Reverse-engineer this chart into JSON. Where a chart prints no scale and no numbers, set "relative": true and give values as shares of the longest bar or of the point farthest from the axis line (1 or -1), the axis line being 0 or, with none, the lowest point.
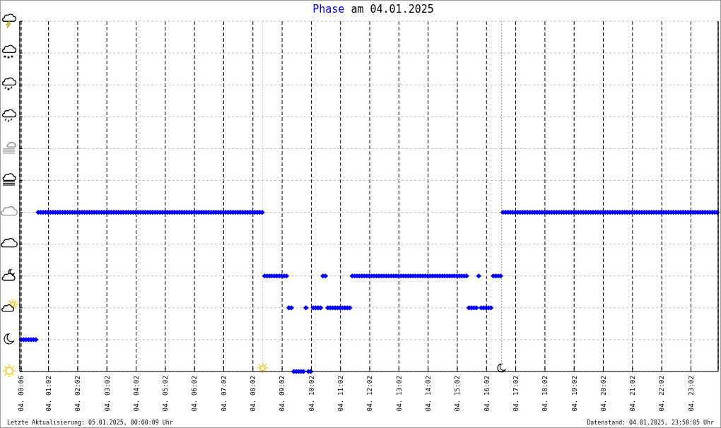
{
  "chart_data": {
    "type": "scatter",
    "title": "am 04.01.2025",
    "relative": true,
    "x": [
      "2025-01-04T00:06",
      "2025-01-04T00:11",
      "2025-01-04T00:16",
      "2025-01-04T00:21",
      "2025-01-04T00:26",
      "2025-01-04T00:31",
      "2025-01-04T00:36",
      "2025-01-04T00:41",
      "2025-01-04T00:46",
      "2025-01-04T00:51",
      "2025-01-04T00:56",
      "2025-01-04T01:01",
      "2025-01-04T01:06",
      "2025-01-04T01:11",
      "2025-01-04T01:16",
      "2025-01-04T01:21",
      "2025-01-04T01:26",
      "2025-01-04T01:31",
      "2025-01-04T01:36",
      "2025-01-04T01:41",
      "2025-01-04T01:46",
      "2025-01-04T01:51",
      "2025-01-04T01:56",
      "2025-01-04T02:01",
      "2025-01-04T02:06",
      "2025-01-04T02:11",
      "2025-01-04T02:16",
      "2025-01-04T02:21",
      "2025-01-04T02:26",
      "2025-01-04T02:31",
      "2025-01-04T02:36",
      "2025-01-04T02:41",
      "2025-01-04T02:46",
      "2025-01-04T02:51",
      "2025-01-04T02:56",
      "2025-01-04T03:01",
      "2025-01-04T03:06",
      "2025-01-04T03:11",
      "2025-01-04T03:16",
      "2025-01-04T03:21",
      "2025-01-04T03:26",
      "2025-01-04T03:31",
      "2025-01-04T03:36",
      "2025-01-04T03:41",
      "2025-01-04T03:46",
      "2025-01-04T03:51",
      "2025-01-04T03:56",
      "2025-01-04T04:01",
      "2025-01-04T04:06",
      "2025-01-04T04:11",
      "2025-01-04T04:16",
      "2025-01-04T04:21",
      "2025-01-04T04:26",
      "2025-01-04T04:31",
      "2025-01-04T04:36",
      "2025-01-04T04:41",
      "2025-01-04T04:46",
      "2025-01-04T04:51",
      "2025-01-04T04:56",
      "2025-01-04T05:01",
      "2025-01-04T05:06",
      "2025-01-04T05:11",
      "2025-01-04T05:16",
      "2025-01-04T05:21",
      "2025-01-04T05:26",
      "2025-01-04T05:31",
      "2025-01-04T05:36",
      "2025-01-04T05:41",
      "2025-01-04T05:46",
      "2025-01-04T05:51",
      "2025-01-04T05:56",
      "2025-01-04T06:01",
      "2025-01-04T06:06",
      "2025-01-04T06:11",
      "2025-01-04T06:16",
      "2025-01-04T06:21",
      "2025-01-04T06:26",
      "2025-01-04T06:31",
      "2025-01-04T06:36",
      "2025-01-04T06:41",
      "2025-01-04T06:46",
      "2025-01-04T06:51",
      "2025-01-04T06:56",
      "2025-01-04T07:01",
      "2025-01-04T07:06",
      "2025-01-04T07:11",
      "2025-01-04T07:16",
      "2025-01-04T07:21",
      "2025-01-04T07:26",
      "2025-01-04T07:31",
      "2025-01-04T07:36",
      "2025-01-04T07:41",
      "2025-01-04T07:46",
      "2025-01-04T07:51",
      "2025-01-04T07:56",
      "2025-01-04T08:01",
      "2025-01-04T08:06",
      "2025-01-04T08:11",
      "2025-01-04T08:16",
      "2025-01-04T08:21",
      "2025-01-04T08:26",
      "2025-01-04T08:31",
      "2025-01-04T08:36",
      "2025-01-04T08:41",
      "2025-01-04T08:46",
      "2025-01-04T08:51",
      "2025-01-04T08:56",
      "2025-01-04T09:01",
      "2025-01-04T09:06",
      "2025-01-04T09:11",
      "2025-01-04T09:16",
      "2025-01-04T09:21",
      "2025-01-04T09:26",
      "2025-01-04T09:31",
      "2025-01-04T09:36",
      "2025-01-04T09:41",
      "2025-01-04T09:46",
      "2025-01-04T09:51",
      "2025-01-04T09:56",
      "2025-01-04T10:01",
      "2025-01-04T10:06",
      "2025-01-04T10:11",
      "2025-01-04T10:16",
      "2025-01-04T10:21",
      "2025-01-04T10:26",
      "2025-01-04T10:31",
      "2025-01-04T10:36",
      "2025-01-04T10:41",
      "2025-01-04T10:46",
      "2025-01-04T10:51",
      "2025-01-04T10:56",
      "2025-01-04T11:01",
      "2025-01-04T11:06",
      "2025-01-04T11:11",
      "2025-01-04T11:16",
      "2025-01-04T11:21",
      "2025-01-04T11:26",
      "2025-01-04T11:31",
      "2025-01-04T11:36",
      "2025-01-04T11:41",
      "2025-01-04T11:46",
      "2025-01-04T11:51",
      "2025-01-04T11:56",
      "2025-01-04T12:01",
      "2025-01-04T12:06",
      "2025-01-04T12:11",
      "2025-01-04T12:16",
      "2025-01-04T12:21",
      "2025-01-04T12:26",
      "2025-01-04T12:31",
      "2025-01-04T12:36",
      "2025-01-04T12:41",
      "2025-01-04T12:46",
      "2025-01-04T12:51",
      "2025-01-04T12:56",
      "2025-01-04T13:01",
      "2025-01-04T13:06",
      "2025-01-04T13:11",
      "2025-01-04T13:16",
      "2025-01-04T13:21",
      "2025-01-04T13:26",
      "2025-01-04T13:31",
      "2025-01-04T13:36",
      "2025-01-04T13:41",
      "2025-01-04T13:46",
      "2025-01-04T13:51",
      "2025-01-04T13:56",
      "2025-01-04T14:01",
      "2025-01-04T14:06",
      "2025-01-04T14:11",
      "2025-01-04T14:16",
      "2025-01-04T14:21",
      "2025-01-04T14:26",
      "2025-01-04T14:31",
      "2025-01-04T14:36",
      "2025-01-04T14:41",
      "2025-01-04T14:46",
      "2025-01-04T14:51",
      "2025-01-04T14:56",
      "2025-01-04T15:01",
      "2025-01-04T15:06",
      "2025-01-04T15:11",
      "2025-01-04T15:16",
      "2025-01-04T15:21",
      "2025-01-04T15:26",
      "2025-01-04T15:31",
      "2025-01-04T15:36",
      "2025-01-04T15:41",
      "2025-01-04T15:46",
      "2025-01-04T15:51",
      "2025-01-04T15:56",
      "2025-01-04T16:01",
      "2025-01-04T16:06",
      "2025-01-04T16:11",
      "2025-01-04T16:16",
      "2025-01-04T16:21",
      "2025-01-04T16:26",
      "2025-01-04T16:31",
      "2025-01-04T16:36",
      "2025-01-04T16:41",
      "2025-01-04T16:46",
      "2025-01-04T16:51",
      "2025-01-04T16:56",
      "2025-01-04T17:01",
      "2025-01-04T17:06",
      "2025-01-04T17:11",
      "2025-01-04T17:16",
      "2025-01-04T17:21",
      "2025-01-04T17:26",
      "2025-01-04T17:31",
      "2025-01-04T17:36",
      "2025-01-04T17:41",
      "2025-01-04T17:46",
      "2025-01-04T17:51",
      "2025-01-04T17:56",
      "2025-01-04T18:01",
      "2025-01-04T18:06",
      "2025-01-04T18:11",
      "2025-01-04T18:16",
      "2025-01-04T18:21",
      "2025-01-04T18:26",
      "2025-01-04T18:31",
      "2025-01-04T18:36",
      "2025-01-04T18:41",
      "2025-01-04T18:46",
      "2025-01-04T18:51",
      "2025-01-04T18:56",
      "2025-01-04T19:01",
      "2025-01-04T19:06",
      "2025-01-04T19:11",
      "2025-01-04T19:16",
      "2025-01-04T19:21",
      "2025-01-04T19:26",
      "2025-01-04T19:31",
      "2025-01-04T19:36",
      "2025-01-04T19:41",
      "2025-01-04T19:46",
      "2025-01-04T19:51",
      "2025-01-04T19:56",
      "2025-01-04T20:01",
      "2025-01-04T20:06",
      "2025-01-04T20:11",
      "2025-01-04T20:16",
      "2025-01-04T20:21",
      "2025-01-04T20:26",
      "2025-01-04T20:31",
      "2025-01-04T20:36",
      "2025-01-04T20:41",
      "2025-01-04T20:46",
      "2025-01-04T20:51",
      "2025-01-04T20:56",
      "2025-01-04T21:01",
      "2025-01-04T21:06",
      "2025-01-04T21:11",
      "2025-01-04T21:16",
      "2025-01-04T21:21",
      "2025-01-04T21:26",
      "2025-01-04T21:31",
      "2025-01-04T21:36",
      "2025-01-04T21:41",
      "2025-01-04T21:46",
      "2025-01-04T21:51",
      "2025-01-04T21:56",
      "2025-01-04T22:01",
      "2025-01-04T22:06",
      "2025-01-04T22:11",
      "2025-01-04T22:16",
      "2025-01-04T22:21",
      "2025-01-04T22:26",
      "2025-01-04T22:31",
      "2025-01-04T22:36",
      "2025-01-04T22:41",
      "2025-01-04T22:46",
      "2025-01-04T22:51",
      "2025-01-04T22:56",
      "2025-01-04T23:01",
      "2025-01-04T23:06",
      "2025-01-04T23:11",
      "2025-01-04T23:16",
      "2025-01-04T23:21",
      "2025-01-04T23:26",
      "2025-01-04T23:31",
      "2025-01-04T23:36",
      "2025-01-04T23:41",
      "2025-01-04T23:46",
      "2025-01-04T23:51",
      "2025-01-04T23:56"
    ],
    "series": [
      {
        "name": "Phase",
        "color": "#0000ff",
        "values": [
          0.2,
          0.2,
          0.2,
          0.2,
          0.2,
          0.2,
          0.2,
          1,
          1,
          1,
          1,
          1,
          1,
          1,
          1,
          1,
          1,
          1,
          1,
          1,
          1,
          1,
          1,
          1,
          1,
          1,
          1,
          1,
          1,
          1,
          1,
          1,
          1,
          1,
          1,
          1,
          1,
          1,
          1,
          1,
          1,
          1,
          1,
          1,
          1,
          1,
          1,
          1,
          1,
          1,
          1,
          1,
          1,
          1,
          1,
          1,
          1,
          1,
          1,
          1,
          1,
          1,
          1,
          1,
          1,
          1,
          1,
          1,
          1,
          1,
          1,
          1,
          1,
          1,
          1,
          1,
          1,
          1,
          1,
          1,
          1,
          1,
          1,
          1,
          1,
          1,
          1,
          1,
          1,
          1,
          1,
          1,
          1,
          1,
          1,
          1,
          1,
          1,
          1,
          1,
          0.6,
          0.6,
          0.6,
          0.6,
          0.6,
          0.6,
          0.6,
          0.6,
          0.6,
          0.6,
          0.4,
          0.4,
          0,
          0,
          0,
          0,
          0,
          0.4,
          0,
          0,
          0.4,
          0.4,
          0.4,
          0.4,
          0.6,
          0.6,
          0.4,
          0.4,
          0.4,
          0.4,
          0.4,
          0.4,
          0.4,
          0.4,
          0.4,
          0.4,
          0.6,
          0.6,
          0.6,
          0.6,
          0.6,
          0.6,
          0.6,
          0.6,
          0.6,
          0.6,
          0.6,
          0.6,
          0.6,
          0.6,
          0.6,
          0.6,
          0.6,
          0.6,
          0.6,
          0.6,
          0.6,
          0.6,
          0.6,
          0.6,
          0.6,
          0.6,
          0.6,
          0.6,
          0.6,
          0.6,
          0.6,
          0.6,
          0.6,
          0.6,
          0.6,
          0.6,
          0.6,
          0.6,
          0.6,
          0.6,
          0.6,
          0.6,
          0.6,
          0.6,
          0.6,
          0.6,
          0.6,
          0.6,
          0.4,
          0.4,
          0.4,
          0.4,
          0.6,
          0.4,
          0.4,
          0.4,
          0.4,
          0.4,
          0.6,
          0.6,
          0.6,
          0.6,
          1,
          1,
          1,
          1,
          1,
          1,
          1,
          1,
          1,
          1,
          1,
          1,
          1,
          1,
          1,
          1,
          1,
          1,
          1,
          1,
          1,
          1,
          1,
          1,
          1,
          1,
          1,
          1,
          1,
          1,
          1,
          1,
          1,
          1,
          1,
          1,
          1,
          1,
          1,
          1,
          1,
          1,
          1,
          1,
          1,
          1,
          1,
          1,
          1,
          1,
          1,
          1,
          1,
          1,
          1,
          1,
          1,
          1,
          1,
          1,
          1,
          1,
          1,
          1,
          1,
          1,
          1,
          1,
          1,
          1,
          1,
          1,
          1,
          1,
          1,
          1,
          1,
          1,
          1,
          1,
          1,
          1,
          1,
          1,
          1,
          1,
          1,
          1,
          1
        ]
      }
    ],
    "xlim": [
      "2025-01-04T00:03",
      "2025-01-04T23:58"
    ],
    "xticks": [
      {
        "value": "2025-01-04T00:06",
        "label": "04. 00:06"
      },
      {
        "value": "2025-01-04T01:02",
        "label": "04. 01:02"
      },
      {
        "value": "2025-01-04T02:02",
        "label": "04. 02:02"
      },
      {
        "value": "2025-01-04T03:02",
        "label": "04. 03:02"
      },
      {
        "value": "2025-01-04T04:02",
        "label": "04. 04:02"
      },
      {
        "value": "2025-01-04T05:02",
        "label": "04. 05:02"
      },
      {
        "value": "2025-01-04T06:02",
        "label": "04. 06:02"
      },
      {
        "value": "2025-01-04T07:02",
        "label": "04. 07:02"
      },
      {
        "value": "2025-01-04T08:02",
        "label": "04. 08:02"
      },
      {
        "value": "2025-01-04T09:02",
        "label": "04. 09:02"
      },
      {
        "value": "2025-01-04T10:02",
        "label": "04. 10:02"
      },
      {
        "value": "2025-01-04T11:02",
        "label": "04. 11:02"
      },
      {
        "value": "2025-01-04T12:02",
        "label": "04. 12:02"
      },
      {
        "value": "2025-01-04T13:02",
        "label": "04. 13:02"
      },
      {
        "value": "2025-01-04T14:02",
        "label": "04. 14:02"
      },
      {
        "value": "2025-01-04T15:02",
        "label": "04. 15:02"
      },
      {
        "value": "2025-01-04T16:02",
        "label": "04. 16:02"
      },
      {
        "value": "2025-01-04T17:02",
        "label": "04. 17:02"
      },
      {
        "value": "2025-01-04T18:02",
        "label": "04. 18:02"
      },
      {
        "value": "2025-01-04T19:02",
        "label": "04. 19:02"
      },
      {
        "value": "2025-01-04T20:02",
        "label": "04. 20:02"
      },
      {
        "value": "2025-01-04T21:02",
        "label": "04. 21:02"
      },
      {
        "value": "2025-01-04T22:02",
        "label": "04. 22:02"
      },
      {
        "value": "2025-01-04T23:02",
        "label": "04. 23:02"
      }
    ],
    "ref_lines": [
      {
        "axis": "x",
        "value": "2025-01-04T08:22",
        "color": "#f2c500",
        "line_style": "dotted"
      },
      {
        "axis": "x",
        "value": "2025-01-04T16:33",
        "color": "#808080",
        "line_style": "dotted"
      }
    ],
    "annotations": [
      "Letzte Aktualisierung: 05.01.2025, 00:00:09 Uhr",
      "Datenstand: 04.01.2025, 23:58:05 Uhr"
    ],
    "grid": true,
    "legend": "top",
    "marker": "diamond"
  }
}
